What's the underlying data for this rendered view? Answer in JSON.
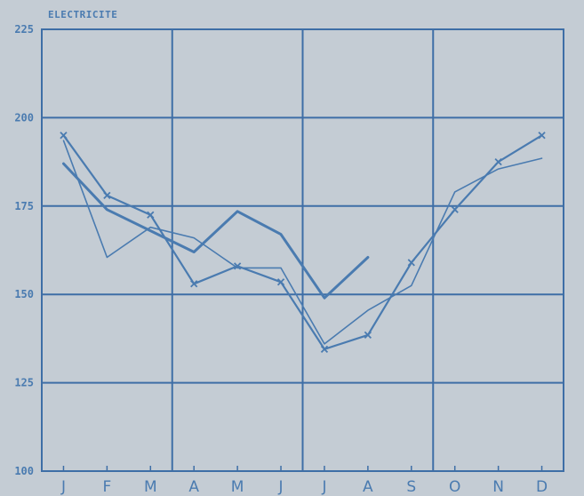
{
  "colors": {
    "background": "#c4ccd4",
    "ink": "#4a7bb0",
    "frame": "#3e6ea6"
  },
  "chart_data": {
    "type": "line",
    "title": "ELECTRICITE",
    "xlabel": "",
    "ylabel": "",
    "categories": [
      "J",
      "F",
      "M",
      "A",
      "M",
      "J",
      "J",
      "A",
      "S",
      "O",
      "N",
      "D"
    ],
    "ylim": [
      100,
      225
    ],
    "yticks": [
      100,
      125,
      150,
      175,
      200,
      225
    ],
    "grid": true,
    "legend": "none",
    "series": [
      {
        "marker": "x",
        "stroke": "medium",
        "values": [
          195,
          178,
          172.5,
          153,
          158,
          153.5,
          134.5,
          138.5,
          159,
          174,
          187.5,
          195
        ]
      },
      {
        "marker": "none",
        "stroke": "thin",
        "values": [
          193.5,
          160.5,
          169,
          166,
          157.5,
          157.5,
          136,
          145.5,
          152.5,
          179,
          185.5,
          188.5
        ]
      },
      {
        "marker": "none",
        "stroke": "thick",
        "values": [
          187,
          174,
          168,
          162,
          173.5,
          167,
          149,
          160.5,
          null,
          null,
          null,
          null
        ]
      }
    ]
  }
}
